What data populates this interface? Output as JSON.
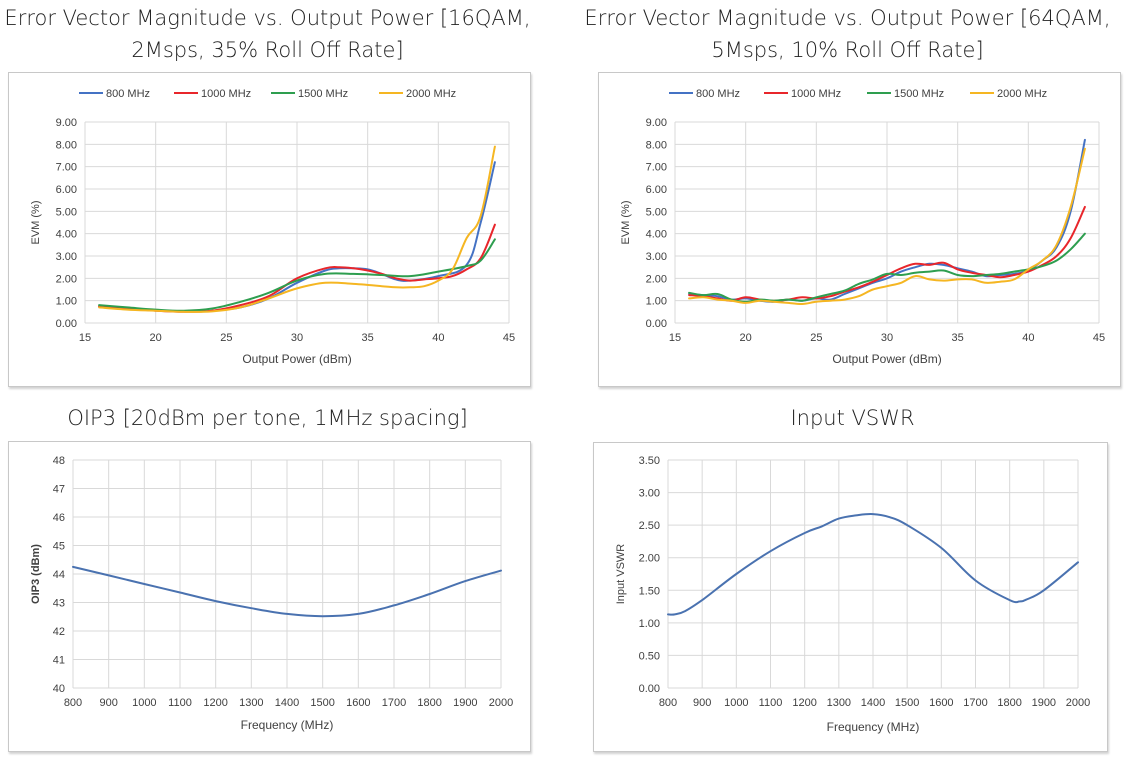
{
  "panels": [
    {
      "title_line1": "Error Vector Magnitude vs. Output Power [16QAM,",
      "title_line2": "2Msps, 35% Roll Off Rate]"
    },
    {
      "title_line1": "Error Vector Magnitude vs. Output Power [64QAM,",
      "title_line2": "5Msps, 10% Roll Off Rate]"
    },
    {
      "title_line1": "OIP3 [20dBm per tone, 1MHz spacing]"
    },
    {
      "title_line1": "Input VSWR"
    }
  ],
  "chart_data": [
    {
      "type": "line",
      "title": "Error Vector Magnitude vs. Output Power [16QAM, 2Msps, 35% Roll Off Rate]",
      "xlabel": "Output Power (dBm)",
      "ylabel": "EVM (%)",
      "xlim": [
        15,
        45
      ],
      "ylim": [
        0,
        9
      ],
      "xticks": [
        15,
        20,
        25,
        30,
        35,
        40,
        45
      ],
      "yticks": [
        0,
        1,
        2,
        3,
        4,
        5,
        6,
        7,
        8,
        9
      ],
      "ytick_labels": [
        "0.00",
        "1.00",
        "2.00",
        "3.00",
        "4.00",
        "5.00",
        "6.00",
        "7.00",
        "8.00",
        "9.00"
      ],
      "legend_position": "top",
      "series": [
        {
          "name": "800 MHz",
          "color": "#4472C4",
          "x": [
            16,
            18,
            20,
            22,
            24,
            26,
            28,
            30,
            32,
            33,
            34,
            35,
            36,
            37,
            38,
            40,
            42,
            43,
            44
          ],
          "y": [
            0.75,
            0.65,
            0.58,
            0.52,
            0.55,
            0.7,
            1.1,
            1.8,
            2.35,
            2.45,
            2.45,
            2.4,
            2.2,
            1.95,
            1.9,
            2.1,
            2.6,
            4.5,
            7.2
          ]
        },
        {
          "name": "1000 MHz",
          "color": "#E8262B",
          "x": [
            16,
            18,
            20,
            22,
            24,
            26,
            28,
            30,
            32,
            33,
            34,
            35,
            36,
            37,
            38,
            39,
            40,
            41,
            42,
            43,
            44
          ],
          "y": [
            0.75,
            0.65,
            0.55,
            0.5,
            0.55,
            0.8,
            1.2,
            2.0,
            2.45,
            2.5,
            2.45,
            2.35,
            2.2,
            2.0,
            1.9,
            1.95,
            2.0,
            2.1,
            2.4,
            2.9,
            4.4
          ]
        },
        {
          "name": "1500 MHz",
          "color": "#2E9E4F",
          "x": [
            16,
            18,
            20,
            22,
            24,
            26,
            28,
            30,
            32,
            34,
            36,
            38,
            40,
            42,
            43,
            44
          ],
          "y": [
            0.8,
            0.7,
            0.6,
            0.55,
            0.65,
            0.95,
            1.35,
            1.9,
            2.2,
            2.2,
            2.15,
            2.1,
            2.3,
            2.55,
            2.8,
            3.75
          ]
        },
        {
          "name": "2000 MHz",
          "color": "#F5B622",
          "x": [
            16,
            18,
            20,
            22,
            24,
            26,
            28,
            30,
            32,
            34,
            36,
            37,
            38,
            39,
            40,
            41,
            42,
            43,
            44
          ],
          "y": [
            0.7,
            0.6,
            0.55,
            0.5,
            0.52,
            0.7,
            1.1,
            1.55,
            1.8,
            1.75,
            1.65,
            1.6,
            1.6,
            1.65,
            1.9,
            2.4,
            3.8,
            4.8,
            7.9
          ]
        }
      ]
    },
    {
      "type": "line",
      "title": "Error Vector Magnitude vs. Output Power [64QAM, 5Msps, 10% Roll Off Rate]",
      "xlabel": "Output Power (dBm)",
      "ylabel": "EVM (%)",
      "xlim": [
        15,
        45
      ],
      "ylim": [
        0,
        9
      ],
      "xticks": [
        15,
        20,
        25,
        30,
        35,
        40,
        45
      ],
      "yticks": [
        0,
        1,
        2,
        3,
        4,
        5,
        6,
        7,
        8,
        9
      ],
      "ytick_labels": [
        "0.00",
        "1.00",
        "2.00",
        "3.00",
        "4.00",
        "5.00",
        "6.00",
        "7.00",
        "8.00",
        "9.00"
      ],
      "legend_position": "top",
      "series": [
        {
          "name": "800 MHz",
          "color": "#4472C4",
          "x": [
            16,
            17,
            18,
            19,
            20,
            21,
            22,
            23,
            24,
            25,
            26,
            27,
            28,
            29,
            30,
            31,
            32,
            33,
            34,
            35,
            36,
            37,
            38,
            39,
            40,
            41,
            42,
            43,
            44
          ],
          "y": [
            1.3,
            1.25,
            1.2,
            1.05,
            1.1,
            1.0,
            0.95,
            1.05,
            1.0,
            1.1,
            1.05,
            1.3,
            1.55,
            1.8,
            2.0,
            2.3,
            2.5,
            2.65,
            2.6,
            2.45,
            2.3,
            2.1,
            2.15,
            2.2,
            2.35,
            2.8,
            3.4,
            5.0,
            8.2
          ]
        },
        {
          "name": "1000 MHz",
          "color": "#E8262B",
          "x": [
            16,
            17,
            18,
            19,
            20,
            21,
            22,
            23,
            24,
            25,
            26,
            27,
            28,
            29,
            30,
            31,
            32,
            33,
            34,
            35,
            36,
            37,
            38,
            39,
            40,
            41,
            42,
            43,
            44
          ],
          "y": [
            1.25,
            1.2,
            1.1,
            1.0,
            1.15,
            1.05,
            1.0,
            1.05,
            1.15,
            1.1,
            1.2,
            1.4,
            1.6,
            1.85,
            2.15,
            2.45,
            2.65,
            2.6,
            2.7,
            2.4,
            2.25,
            2.15,
            2.05,
            2.15,
            2.3,
            2.6,
            3.0,
            3.8,
            5.2
          ]
        },
        {
          "name": "1500 MHz",
          "color": "#2E9E4F",
          "x": [
            16,
            17,
            18,
            19,
            20,
            21,
            22,
            23,
            24,
            25,
            26,
            27,
            28,
            29,
            30,
            31,
            32,
            33,
            34,
            35,
            36,
            37,
            38,
            39,
            40,
            41,
            42,
            43,
            44
          ],
          "y": [
            1.35,
            1.25,
            1.3,
            1.05,
            0.95,
            1.05,
            1.0,
            1.05,
            1.0,
            1.15,
            1.3,
            1.45,
            1.75,
            1.95,
            2.2,
            2.15,
            2.25,
            2.3,
            2.35,
            2.15,
            2.1,
            2.15,
            2.2,
            2.3,
            2.4,
            2.55,
            2.8,
            3.3,
            4.0
          ]
        },
        {
          "name": "2000 MHz",
          "color": "#F5B622",
          "x": [
            16,
            17,
            18,
            19,
            20,
            21,
            22,
            23,
            24,
            25,
            26,
            27,
            28,
            29,
            30,
            31,
            32,
            33,
            34,
            35,
            36,
            37,
            38,
            39,
            40,
            41,
            42,
            43,
            44
          ],
          "y": [
            1.1,
            1.15,
            1.05,
            1.0,
            0.9,
            1.0,
            0.95,
            0.9,
            0.85,
            0.95,
            1.0,
            1.05,
            1.2,
            1.5,
            1.65,
            1.8,
            2.1,
            1.95,
            1.9,
            1.95,
            1.95,
            1.8,
            1.85,
            1.95,
            2.4,
            2.8,
            3.5,
            5.2,
            7.8
          ]
        }
      ]
    },
    {
      "type": "line",
      "title": "OIP3 [20dBm per tone, 1MHz spacing]",
      "xlabel": "Frequency (MHz)",
      "ylabel": "OIP3 (dBm)",
      "xlim": [
        800,
        2000
      ],
      "ylim": [
        40,
        48
      ],
      "xticks": [
        800,
        900,
        1000,
        1100,
        1200,
        1300,
        1400,
        1500,
        1600,
        1700,
        1800,
        1900,
        2000
      ],
      "yticks": [
        40,
        41,
        42,
        43,
        44,
        45,
        46,
        47,
        48
      ],
      "ytick_labels": [
        "40",
        "41",
        "42",
        "43",
        "44",
        "45",
        "46",
        "47",
        "48"
      ],
      "series": [
        {
          "name": "OIP3",
          "color": "#4A72B0",
          "x": [
            800,
            900,
            1000,
            1100,
            1200,
            1300,
            1400,
            1500,
            1600,
            1700,
            1800,
            1900,
            2000
          ],
          "y": [
            44.25,
            43.95,
            43.65,
            43.35,
            43.05,
            42.8,
            42.6,
            42.52,
            42.6,
            42.9,
            43.3,
            43.75,
            44.12
          ]
        }
      ]
    },
    {
      "type": "line",
      "title": "Input VSWR",
      "xlabel": "Frequency (MHz)",
      "ylabel": "Input VSWR",
      "xlim": [
        800,
        2000
      ],
      "ylim": [
        0,
        3.5
      ],
      "xticks": [
        800,
        900,
        1000,
        1100,
        1200,
        1300,
        1400,
        1500,
        1600,
        1700,
        1800,
        1900,
        2000
      ],
      "yticks": [
        0,
        0.5,
        1.0,
        1.5,
        2.0,
        2.5,
        3.0,
        3.5
      ],
      "ytick_labels": [
        "0.00",
        "0.50",
        "1.00",
        "1.50",
        "2.00",
        "2.50",
        "3.00",
        "3.50"
      ],
      "series": [
        {
          "name": "Input VSWR",
          "color": "#4A72B0",
          "x": [
            800,
            820,
            850,
            900,
            1000,
            1100,
            1200,
            1250,
            1300,
            1350,
            1400,
            1450,
            1500,
            1600,
            1700,
            1800,
            1830,
            1850,
            1900,
            2000
          ],
          "y": [
            1.13,
            1.13,
            1.18,
            1.35,
            1.75,
            2.1,
            2.38,
            2.48,
            2.6,
            2.65,
            2.67,
            2.62,
            2.5,
            2.15,
            1.65,
            1.35,
            1.33,
            1.36,
            1.5,
            1.93
          ]
        }
      ]
    }
  ]
}
